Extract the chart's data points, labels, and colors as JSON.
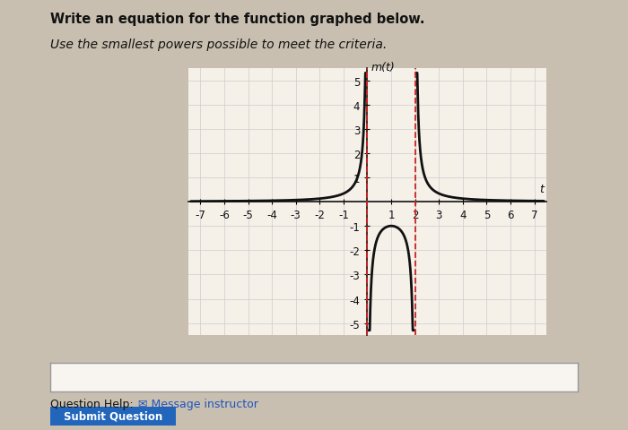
{
  "title_line1": "Write an equation for the function graphed below.",
  "title_line2": "Use the smallest powers possible to meet the criteria.",
  "ylabel": "m(t)",
  "xlabel": "t",
  "xlim": [
    -7.5,
    7.5
  ],
  "ylim": [
    -5.5,
    5.5
  ],
  "xticks": [
    -7,
    -6,
    -5,
    -4,
    -3,
    -2,
    -1,
    1,
    2,
    3,
    4,
    5,
    6,
    7
  ],
  "yticks": [
    -5,
    -4,
    -3,
    -2,
    -1,
    1,
    2,
    3,
    4,
    5
  ],
  "asymptote1": 0,
  "asymptote2": 2,
  "background_color": "#c8bfb0",
  "plot_bg_color": "#f5f0e8",
  "curve_color": "#111111",
  "asymptote_color": "#cc2222",
  "grid_color": "#cccccc",
  "text_color": "#111111",
  "title_fontsize": 10.5,
  "tick_fontsize": 8.5,
  "figsize": [
    7.0,
    4.81
  ],
  "dpi": 100
}
